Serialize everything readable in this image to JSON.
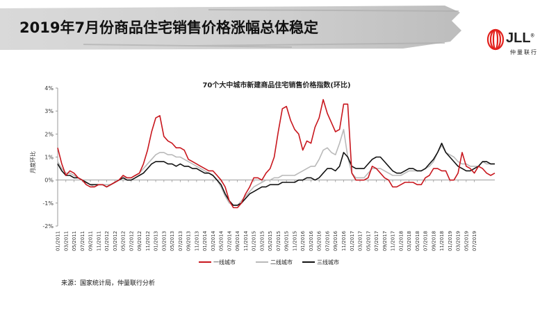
{
  "slide": {
    "title": "2019年7月份商品住宅销售价格涨幅总体稳定",
    "source": "来源：国家统计局，仲量联行分析"
  },
  "brand": {
    "name": "JLL",
    "reg": "®",
    "subtitle": "仲量联行",
    "color": "#e2201c"
  },
  "chart_data": {
    "type": "line",
    "title": "70个大中城市新建商品住宅销售价格指数(环比)",
    "xlabel": "",
    "ylabel": "月度环比",
    "ylim": [
      -2,
      4
    ],
    "y_ticks": [
      "-2%",
      "-1%",
      "0%",
      "1%",
      "2%",
      "3%",
      "4%"
    ],
    "y_tick_values": [
      -2,
      -1,
      0,
      1,
      2,
      3,
      4
    ],
    "x_tick_labels": [
      "01/2011",
      "03/2011",
      "05/2011",
      "07/2011",
      "09/2011",
      "11/2011",
      "01/2012",
      "03/2012",
      "05/2012",
      "07/2012",
      "09/2012",
      "11/2012",
      "01/2013",
      "03/2013",
      "05/2013",
      "07/2013",
      "09/2013",
      "11/2013",
      "01/2014",
      "03/2014",
      "05/2014",
      "07/2014",
      "09/2014",
      "11/2014",
      "01/2015",
      "03/2015",
      "05/2015",
      "07/2015",
      "09/2015",
      "11/2015",
      "01/2016",
      "03/2016",
      "05/2016",
      "07/2016",
      "09/2016",
      "11/2016",
      "01/2017",
      "03/2017",
      "05/2017",
      "07/2017",
      "09/2017",
      "11/2017",
      "01/2018",
      "03/2018",
      "05/2018",
      "07/2018",
      "09/2018",
      "11/2018",
      "01/2019",
      "03/2019",
      "05/2019",
      "07/2019"
    ],
    "grid": false,
    "legend_position": "bottom",
    "colors": [
      "#c8161d",
      "#b9b9b9",
      "#111111"
    ],
    "series": [
      {
        "name": "一线城市",
        "values": [
          1.4,
          0.7,
          0.2,
          0.4,
          0.3,
          0.1,
          0.0,
          -0.2,
          -0.3,
          -0.3,
          -0.2,
          -0.2,
          -0.3,
          -0.2,
          -0.1,
          0.0,
          0.2,
          0.1,
          0.1,
          0.2,
          0.3,
          0.7,
          1.3,
          2.1,
          2.7,
          2.8,
          1.9,
          1.7,
          1.6,
          1.4,
          1.4,
          1.3,
          0.9,
          0.8,
          0.7,
          0.6,
          0.5,
          0.4,
          0.4,
          0.2,
          0.0,
          -0.3,
          -0.9,
          -1.2,
          -1.2,
          -1.0,
          -0.6,
          -0.3,
          0.1,
          0.1,
          0.0,
          0.3,
          0.5,
          1.0,
          2.1,
          3.1,
          3.2,
          2.6,
          2.2,
          2.0,
          1.3,
          1.7,
          1.6,
          2.3,
          2.7,
          3.5,
          2.9,
          2.5,
          2.1,
          2.2,
          3.3,
          3.3,
          0.3,
          0.0,
          0.0,
          0.0,
          0.1,
          0.6,
          0.5,
          0.3,
          0.1,
          0.0,
          -0.3,
          -0.3,
          -0.2,
          -0.1,
          -0.1,
          -0.1,
          -0.2,
          -0.2,
          0.1,
          0.2,
          0.5,
          0.5,
          0.4,
          0.4,
          0.0,
          0.0,
          0.3,
          1.2,
          0.6,
          0.5,
          0.3,
          0.6,
          0.5,
          0.3,
          0.2,
          0.3
        ]
      },
      {
        "name": "二线城市",
        "values": [
          0.8,
          0.5,
          0.3,
          0.3,
          0.2,
          0.1,
          0.0,
          -0.1,
          -0.2,
          -0.3,
          -0.2,
          -0.2,
          -0.2,
          -0.2,
          -0.1,
          0.0,
          0.1,
          0.1,
          0.1,
          0.2,
          0.3,
          0.5,
          0.7,
          0.9,
          1.1,
          1.2,
          1.2,
          1.1,
          1.1,
          1.0,
          1.0,
          0.9,
          0.8,
          0.7,
          0.6,
          0.5,
          0.4,
          0.3,
          0.2,
          0.0,
          -0.3,
          -0.7,
          -1.0,
          -1.1,
          -1.1,
          -0.9,
          -0.7,
          -0.5,
          -0.3,
          -0.2,
          -0.1,
          0.0,
          0.0,
          0.1,
          0.1,
          0.2,
          0.2,
          0.2,
          0.2,
          0.3,
          0.4,
          0.5,
          0.6,
          0.6,
          0.9,
          1.3,
          1.4,
          1.2,
          1.1,
          1.6,
          2.2,
          1.0,
          0.3,
          0.1,
          0.1,
          0.1,
          0.3,
          0.5,
          0.5,
          0.5,
          0.4,
          0.3,
          0.2,
          0.2,
          0.2,
          0.3,
          0.4,
          0.4,
          0.4,
          0.4,
          0.5,
          0.6,
          0.8,
          1.2,
          1.5,
          1.2,
          1.1,
          1.0,
          0.8,
          0.7,
          0.7,
          0.6,
          0.6,
          0.6,
          0.8,
          0.7,
          0.7,
          0.7
        ]
      },
      {
        "name": "三线城市",
        "values": [
          0.7,
          0.4,
          0.2,
          0.2,
          0.1,
          0.1,
          0.0,
          -0.1,
          -0.2,
          -0.2,
          -0.2,
          -0.2,
          -0.3,
          -0.2,
          -0.1,
          0.0,
          0.1,
          0.0,
          0.0,
          0.1,
          0.2,
          0.3,
          0.5,
          0.7,
          0.8,
          0.8,
          0.8,
          0.7,
          0.7,
          0.6,
          0.7,
          0.6,
          0.6,
          0.5,
          0.5,
          0.4,
          0.3,
          0.3,
          0.2,
          0.0,
          -0.2,
          -0.6,
          -0.9,
          -1.1,
          -1.1,
          -1.0,
          -0.8,
          -0.6,
          -0.5,
          -0.4,
          -0.3,
          -0.3,
          -0.2,
          -0.2,
          -0.2,
          -0.1,
          -0.1,
          -0.1,
          -0.1,
          0.0,
          0.0,
          0.1,
          0.1,
          0.0,
          0.1,
          0.3,
          0.5,
          0.5,
          0.4,
          0.6,
          1.2,
          1.0,
          0.6,
          0.5,
          0.5,
          0.5,
          0.7,
          0.9,
          1.0,
          1.0,
          0.8,
          0.6,
          0.4,
          0.3,
          0.3,
          0.4,
          0.5,
          0.5,
          0.4,
          0.4,
          0.5,
          0.7,
          0.9,
          1.2,
          1.6,
          1.2,
          1.0,
          0.8,
          0.6,
          0.5,
          0.4,
          0.4,
          0.5,
          0.6,
          0.8,
          0.8,
          0.7,
          0.7
        ]
      }
    ]
  }
}
